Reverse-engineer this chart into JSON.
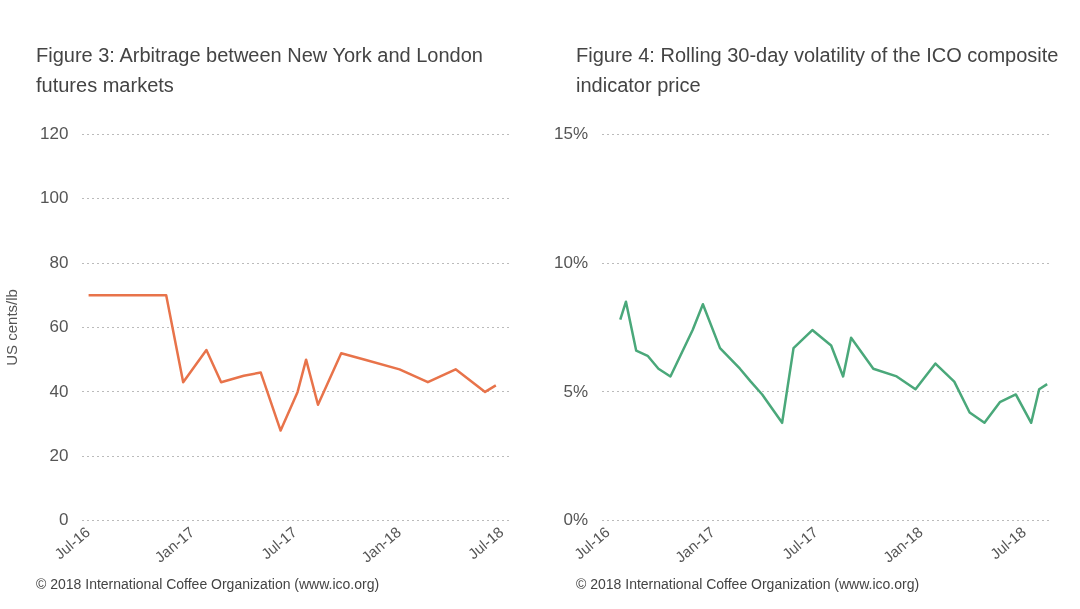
{
  "chart_data": [
    {
      "type": "line",
      "title": "Figure 3: Arbitrage between New York and London futures markets",
      "ylabel": "US cents/lb",
      "x": [
        "2016-07-01",
        "2016-11-15",
        "2016-12-15",
        "2017-01-25",
        "2017-02-20",
        "2017-04-01",
        "2017-05-01",
        "2017-06-05",
        "2017-07-05",
        "2017-07-20",
        "2017-08-10",
        "2017-09-20",
        "2017-11-01",
        "2018-01-01",
        "2018-02-20",
        "2018-04-10",
        "2018-06-01",
        "2018-06-20"
      ],
      "series": [
        {
          "color": "#e8734a",
          "values": [
            70,
            70,
            43,
            53,
            43,
            45,
            46,
            28,
            40,
            50,
            36,
            52,
            50,
            47,
            43,
            47,
            40,
            42
          ]
        }
      ],
      "xlim": [
        "2016-06-20",
        "2018-07-15"
      ],
      "xticks": [
        {
          "value": "2016-07-01",
          "label": "Jul-16"
        },
        {
          "value": "2017-01-01",
          "label": "Jan-17"
        },
        {
          "value": "2017-07-01",
          "label": "Jul-17"
        },
        {
          "value": "2018-01-01",
          "label": "Jan-18"
        },
        {
          "value": "2018-07-01",
          "label": "Jul-18"
        }
      ],
      "ylim": [
        0,
        120
      ],
      "yticks": [
        0,
        20,
        40,
        60,
        80,
        100,
        120
      ],
      "grid": "y",
      "legend": false,
      "marker": "none",
      "annotations": [
        "© 2018 International Coffee Organization (www.ico.org)"
      ]
    },
    {
      "type": "line",
      "title": "Figure 4: Rolling 30-day volatility of the ICO composite indicator price",
      "x": [
        "2016-07-22",
        "2016-08-01",
        "2016-08-19",
        "2016-09-08",
        "2016-09-27",
        "2016-10-18",
        "2016-11-26",
        "2016-12-14",
        "2017-01-13",
        "2017-02-17",
        "2017-03-08",
        "2017-03-28",
        "2017-05-02",
        "2017-05-22",
        "2017-06-24",
        "2017-07-27",
        "2017-08-17",
        "2017-08-31",
        "2017-10-09",
        "2017-11-19",
        "2017-12-22",
        "2018-01-26",
        "2018-02-28",
        "2018-03-27",
        "2018-04-22",
        "2018-05-19",
        "2018-06-16",
        "2018-07-13",
        "2018-07-27",
        "2018-08-10"
      ],
      "series": [
        {
          "color": "#4aa87a",
          "values": [
            7.8,
            8.5,
            6.6,
            6.4,
            5.9,
            5.6,
            7.4,
            8.4,
            6.7,
            5.9,
            5.4,
            4.9,
            3.8,
            6.7,
            7.4,
            6.8,
            5.6,
            7.1,
            5.9,
            5.6,
            5.1,
            6.1,
            5.4,
            4.2,
            3.8,
            4.6,
            4.9,
            3.8,
            5.1,
            5.3
          ]
        }
      ],
      "xlim": [
        "2016-06-20",
        "2018-08-15"
      ],
      "xticks": [
        {
          "value": "2016-07-01",
          "label": "Jul-16"
        },
        {
          "value": "2017-01-01",
          "label": "Jan-17"
        },
        {
          "value": "2017-07-01",
          "label": "Jul-17"
        },
        {
          "value": "2018-01-01",
          "label": "Jan-18"
        },
        {
          "value": "2018-07-01",
          "label": "Jul-18"
        }
      ],
      "ylim": [
        0,
        15
      ],
      "yticks": [
        {
          "value": 0,
          "label": "0%"
        },
        {
          "value": 5,
          "label": "5%"
        },
        {
          "value": 10,
          "label": "10%"
        },
        {
          "value": 15,
          "label": "15%"
        }
      ],
      "grid": "y",
      "legend": false,
      "marker": "none",
      "annotations": [
        "© 2018 International Coffee Organization (www.ico.org)"
      ]
    }
  ]
}
